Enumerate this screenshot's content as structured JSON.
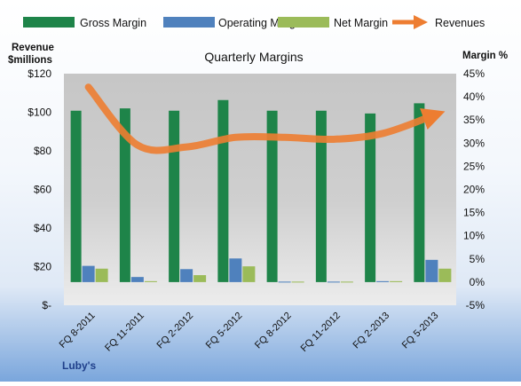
{
  "chart_data": {
    "type": "bar",
    "title": "Quarterly Margins",
    "footer": "Luby's",
    "categories": [
      "FQ 8-2011",
      "FQ 11-2011",
      "FQ 2-2012",
      "FQ 5-2012",
      "FQ 8-2012",
      "FQ 11-2012",
      "FQ 2-2013",
      "FQ 5-2013"
    ],
    "y_left": {
      "label_line1": "Revenue",
      "label_line2": "$millions",
      "range": [
        0,
        120
      ],
      "ticks": [
        {
          "value": 0,
          "label": "$-"
        },
        {
          "value": 20,
          "label": "$20"
        },
        {
          "value": 40,
          "label": "$40"
        },
        {
          "value": 60,
          "label": "$60"
        },
        {
          "value": 80,
          "label": "$80"
        },
        {
          "value": 100,
          "label": "$100"
        },
        {
          "value": 120,
          "label": "$120"
        }
      ]
    },
    "y_right": {
      "label": "Margin %",
      "range": [
        -5,
        45
      ],
      "ticks": [
        {
          "value": -5,
          "label": "-5%"
        },
        {
          "value": 0,
          "label": "0%"
        },
        {
          "value": 5,
          "label": "5%"
        },
        {
          "value": 10,
          "label": "10%"
        },
        {
          "value": 15,
          "label": "15%"
        },
        {
          "value": 20,
          "label": "20%"
        },
        {
          "value": 25,
          "label": "25%"
        },
        {
          "value": 30,
          "label": "30%"
        },
        {
          "value": 35,
          "label": "35%"
        },
        {
          "value": 40,
          "label": "40%"
        },
        {
          "value": 45,
          "label": "45%"
        }
      ]
    },
    "series": [
      {
        "name": "Gross Margin",
        "axis": "right",
        "color": "#1e8449",
        "values": [
          37.0,
          37.5,
          37.0,
          39.3,
          37.0,
          37.0,
          36.4,
          38.6
        ]
      },
      {
        "name": "Operating Margin",
        "axis": "right",
        "color": "#4f81bd",
        "values": [
          3.5,
          1.1,
          2.8,
          5.1,
          0.1,
          0.1,
          0.2,
          4.8
        ]
      },
      {
        "name": "Net Margin",
        "axis": "right",
        "color": "#9bbb59",
        "values": [
          2.9,
          0.2,
          1.5,
          3.4,
          0.1,
          0.1,
          0.2,
          2.9
        ]
      },
      {
        "name": "Revenues",
        "axis": "left",
        "type": "line",
        "color": "#ed7d31",
        "values": [
          113,
          83,
          82,
          87,
          87,
          86,
          89,
          98
        ]
      }
    ],
    "grid": false,
    "legend_position": "top"
  }
}
